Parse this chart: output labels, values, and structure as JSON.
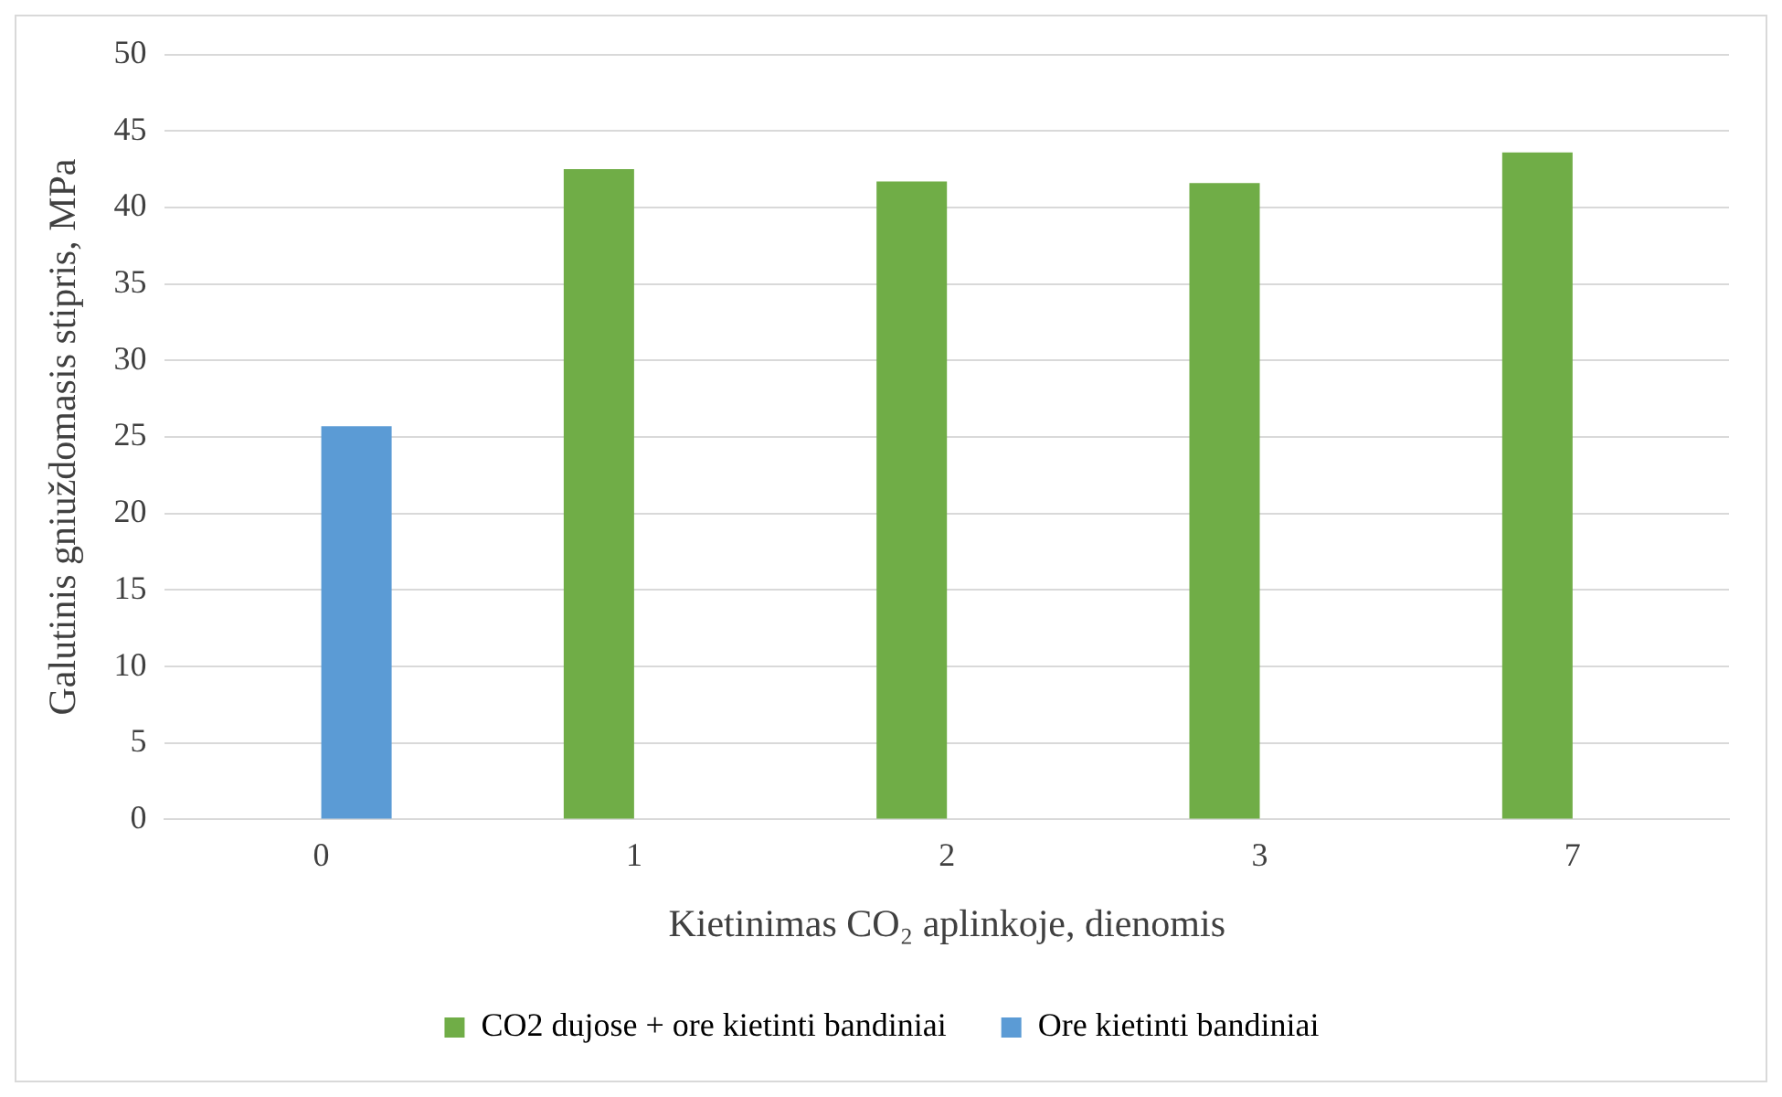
{
  "chart_data": {
    "type": "bar",
    "xlabel": "Kietinimas CO₂ aplinkoje, dienomis",
    "ylabel": "Galutinis gniuždomasis stipris, MPa",
    "categories": [
      "0",
      "1",
      "2",
      "3",
      "7"
    ],
    "series": [
      {
        "name": "CO2 dujose + ore kietinti bandiniai",
        "color": "#70ad47",
        "values": [
          null,
          42.5,
          41.7,
          41.6,
          43.6
        ]
      },
      {
        "name": "Ore kietinti bandiniai",
        "color": "#5b9bd5",
        "values": [
          25.7,
          null,
          null,
          null,
          null
        ]
      }
    ],
    "ylim": [
      0,
      50
    ],
    "yticks": [
      0,
      5,
      10,
      15,
      20,
      25,
      30,
      35,
      40,
      45,
      50
    ],
    "grid": "y",
    "legend": "bottom"
  }
}
